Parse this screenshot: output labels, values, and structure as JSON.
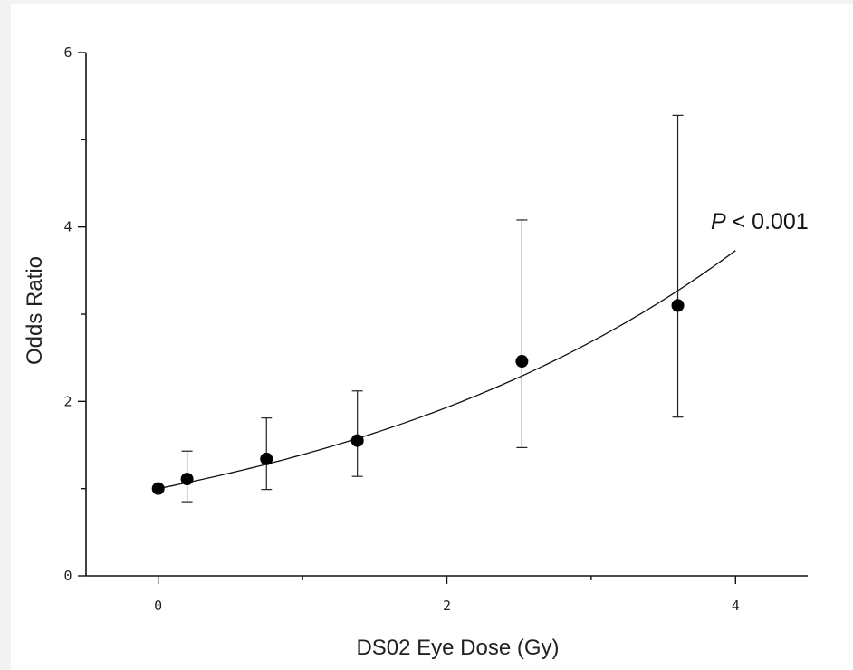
{
  "chart_data": {
    "type": "scatter",
    "xlabel": "DS02 Eye Dose (Gy)",
    "ylabel": "Odds Ratio",
    "xlim": [
      -0.5,
      4.5
    ],
    "ylim": [
      0,
      6
    ],
    "x_ticks": [
      0,
      2,
      4
    ],
    "x_tick_labels": [
      "0",
      "2",
      "4"
    ],
    "x_minor_ticks": [
      1,
      3
    ],
    "y_ticks": [
      0,
      2,
      4,
      6
    ],
    "y_tick_labels": [
      "0",
      "2",
      "4",
      "6"
    ],
    "y_minor_ticks": [
      1,
      3,
      5
    ],
    "grid": false,
    "points": [
      {
        "x": 0.0,
        "y": 1.0
      },
      {
        "x": 0.2,
        "y": 1.11,
        "lower": 0.85,
        "upper": 1.43
      },
      {
        "x": 0.75,
        "y": 1.34,
        "lower": 0.99,
        "upper": 1.81
      },
      {
        "x": 1.38,
        "y": 1.55,
        "lower": 1.14,
        "upper": 2.12
      },
      {
        "x": 2.52,
        "y": 2.46,
        "lower": 1.47,
        "upper": 4.08
      },
      {
        "x": 3.6,
        "y": 3.1,
        "lower": 1.82,
        "upper": 5.28
      }
    ],
    "fit_curve": {
      "x_range": [
        0,
        4
      ],
      "ratio_at_max": 3.73
    },
    "annotation": {
      "italic": "P",
      "rest": " < 0.001"
    }
  }
}
